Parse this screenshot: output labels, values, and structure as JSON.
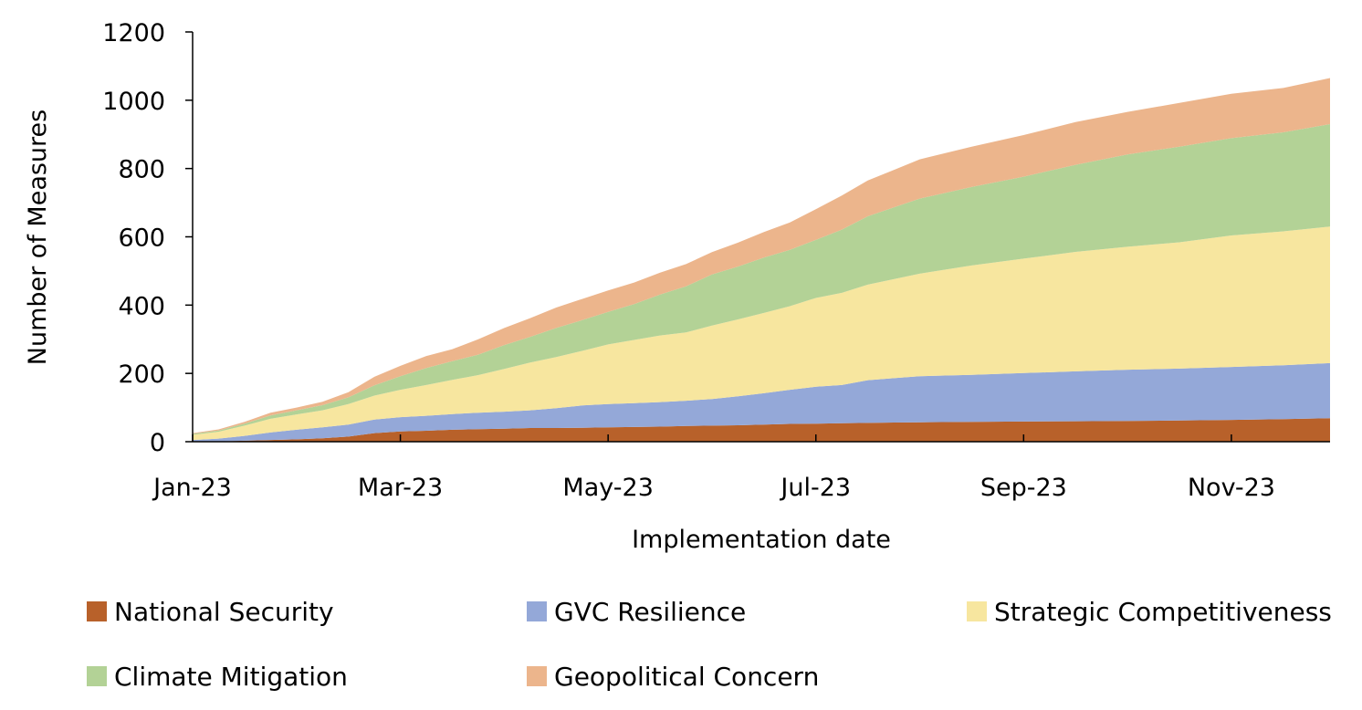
{
  "chart_data": {
    "type": "area",
    "stacked": true,
    "xlabel": "Implementation date",
    "ylabel": "Number of Measures",
    "x_ticks": [
      "Jan-23",
      "Mar-23",
      "May-23",
      "Jul-23",
      "Sep-23",
      "Nov-23"
    ],
    "x_tick_months": [
      0,
      2,
      4,
      6,
      8,
      10
    ],
    "x_range_months": [
      0,
      10.95
    ],
    "ylim": [
      0,
      1200
    ],
    "y_ticks": [
      0,
      200,
      400,
      600,
      800,
      1000,
      1200
    ],
    "grid": false,
    "legend_position": "bottom",
    "x": [
      0,
      0.25,
      0.5,
      0.75,
      1.0,
      1.25,
      1.5,
      1.75,
      2.0,
      2.25,
      2.5,
      2.75,
      3.0,
      3.25,
      3.5,
      3.75,
      4.0,
      4.25,
      4.5,
      4.75,
      5.0,
      5.25,
      5.5,
      5.75,
      6.0,
      6.25,
      6.5,
      6.75,
      7.0,
      7.5,
      8.0,
      8.5,
      9.0,
      9.5,
      10.0,
      10.5,
      10.95
    ],
    "series": [
      {
        "name": "National Security",
        "color": "#B8612A",
        "values": [
          0,
          1,
          3,
          5,
          7,
          10,
          15,
          25,
          30,
          32,
          35,
          37,
          38,
          40,
          40,
          41,
          42,
          43,
          44,
          46,
          47,
          48,
          50,
          52,
          53,
          54,
          55,
          56,
          57,
          58,
          59,
          60,
          61,
          62,
          64,
          66,
          69
        ]
      },
      {
        "name": "GVC Resilience",
        "color": "#94A8D8",
        "values": [
          5,
          8,
          14,
          22,
          28,
          32,
          35,
          40,
          42,
          44,
          46,
          48,
          50,
          52,
          58,
          65,
          68,
          70,
          72,
          74,
          78,
          85,
          92,
          100,
          108,
          112,
          125,
          130,
          135,
          138,
          142,
          146,
          150,
          152,
          155,
          158,
          161
        ]
      },
      {
        "name": "Strategic Competitiveness",
        "color": "#F7E69F",
        "values": [
          15,
          20,
          30,
          40,
          45,
          50,
          60,
          70,
          80,
          90,
          100,
          110,
          125,
          140,
          150,
          160,
          175,
          185,
          195,
          200,
          215,
          225,
          235,
          245,
          260,
          270,
          280,
          290,
          300,
          320,
          335,
          350,
          360,
          370,
          385,
          392,
          400
        ]
      },
      {
        "name": "Climate Mitigation",
        "color": "#B3D296",
        "values": [
          3,
          4,
          6,
          10,
          12,
          15,
          20,
          30,
          40,
          50,
          55,
          60,
          70,
          75,
          85,
          90,
          95,
          105,
          120,
          135,
          150,
          155,
          162,
          165,
          170,
          185,
          200,
          210,
          220,
          230,
          240,
          255,
          270,
          280,
          285,
          290,
          300
        ]
      },
      {
        "name": "Geopolitical Concern",
        "color": "#ECB58C",
        "values": [
          2,
          3,
          5,
          8,
          8,
          10,
          15,
          25,
          30,
          35,
          35,
          45,
          50,
          55,
          60,
          62,
          63,
          63,
          64,
          65,
          65,
          70,
          75,
          80,
          90,
          100,
          105,
          110,
          115,
          118,
          122,
          125,
          125,
          128,
          130,
          130,
          135
        ]
      }
    ]
  }
}
